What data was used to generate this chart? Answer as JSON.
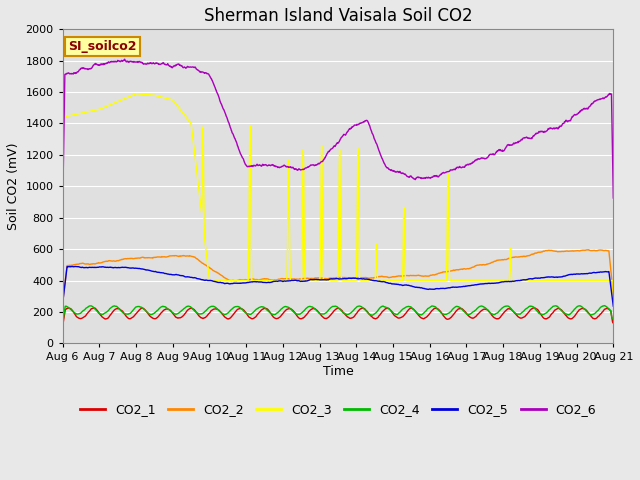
{
  "title": "Sherman Island Vaisala Soil CO2",
  "ylabel": "Soil CO2 (mV)",
  "xlabel": "Time",
  "label_text": "SI_soilco2",
  "ylim": [
    0,
    2000
  ],
  "yticks": [
    0,
    200,
    400,
    600,
    800,
    1000,
    1200,
    1400,
    1600,
    1800,
    2000
  ],
  "xtick_labels": [
    "Aug 6",
    "Aug 7",
    "Aug 8",
    "Aug 9",
    "Aug 10",
    "Aug 11",
    "Aug 12",
    "Aug 13",
    "Aug 14",
    "Aug 15",
    "Aug 16",
    "Aug 17",
    "Aug 18",
    "Aug 19",
    "Aug 20",
    "Aug 21"
  ],
  "colors": {
    "CO2_1": "#dd0000",
    "CO2_2": "#ff8800",
    "CO2_3": "#ffff00",
    "CO2_4": "#00bb00",
    "CO2_5": "#0000dd",
    "CO2_6": "#aa00bb"
  },
  "bg_color": "#e0e0e0",
  "grid_color": "#ffffff",
  "fig_color": "#e8e8e8",
  "title_fontsize": 12,
  "axis_fontsize": 9,
  "tick_fontsize": 8,
  "legend_fontsize": 9
}
